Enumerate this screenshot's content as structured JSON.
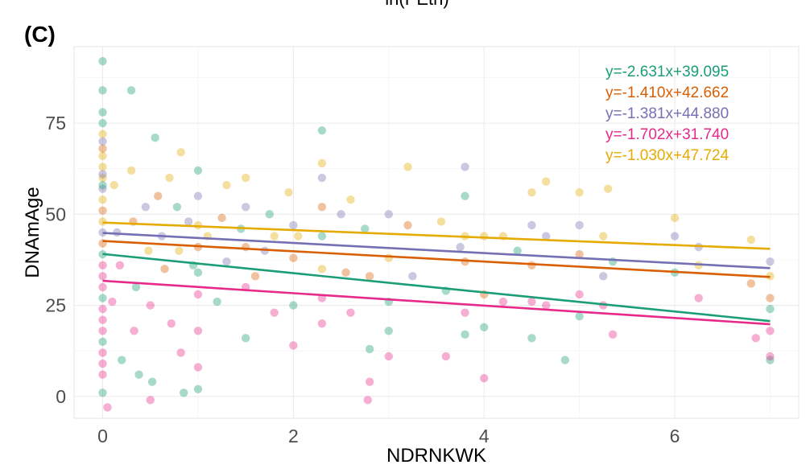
{
  "figure": {
    "cut_title": "ln(PEth)",
    "panel_tag": "(C)"
  },
  "chart_data": {
    "type": "scatter",
    "title": "",
    "xlabel": "NDRNKWK",
    "ylabel": "DNAmAge",
    "xlim": [
      -0.3,
      7.3
    ],
    "ylim": [
      -6,
      96
    ],
    "x_ticks": [
      0,
      2,
      4,
      6
    ],
    "y_ticks": [
      0,
      25,
      50,
      75
    ],
    "x_minor_ticks": [
      1,
      3,
      5,
      7
    ],
    "y_minor_ticks": [
      12.5,
      37.5,
      62.5,
      87.5
    ],
    "grid": true,
    "legend_position": "top-right",
    "series": [
      {
        "color": "#1b9e77",
        "intercept": 39.095,
        "slope": -2.631,
        "label": "y=-2.631x+39.095"
      },
      {
        "color": "#d95f02",
        "intercept": 42.662,
        "slope": -1.41,
        "label": "y=-1.410x+42.662"
      },
      {
        "color": "#7570b3",
        "intercept": 44.88,
        "slope": -1.381,
        "label": "y=-1.381x+44.880"
      },
      {
        "color": "#e7298a",
        "intercept": 31.74,
        "slope": -1.702,
        "label": "y=-1.702x+31.740"
      },
      {
        "color": "#e6ab02",
        "intercept": 47.724,
        "slope": -1.03,
        "label": "y=-1.030x+47.724"
      }
    ],
    "regression_x_range": [
      0,
      7
    ],
    "points": [
      {
        "x": 0.0,
        "y": 92.0,
        "s": 0
      },
      {
        "x": 0.0,
        "y": 84.0,
        "s": 0
      },
      {
        "x": 0.0,
        "y": 78.0,
        "s": 0
      },
      {
        "x": 0.0,
        "y": 70.0,
        "s": 2
      },
      {
        "x": 0.0,
        "y": 66.0,
        "s": 4
      },
      {
        "x": 0.0,
        "y": 63.0,
        "s": 4
      },
      {
        "x": 0.0,
        "y": 60.0,
        "s": 4
      },
      {
        "x": 0.0,
        "y": 57.0,
        "s": 2
      },
      {
        "x": 0.0,
        "y": 54.0,
        "s": 4
      },
      {
        "x": 0.0,
        "y": 51.0,
        "s": 1
      },
      {
        "x": 0.0,
        "y": 48.0,
        "s": 4
      },
      {
        "x": 0.0,
        "y": 45.0,
        "s": 2
      },
      {
        "x": 0.0,
        "y": 42.0,
        "s": 1
      },
      {
        "x": 0.0,
        "y": 39.0,
        "s": 0
      },
      {
        "x": 0.0,
        "y": 36.0,
        "s": 3
      },
      {
        "x": 0.0,
        "y": 33.0,
        "s": 3
      },
      {
        "x": 0.0,
        "y": 30.0,
        "s": 3
      },
      {
        "x": 0.0,
        "y": 27.0,
        "s": 0
      },
      {
        "x": 0.0,
        "y": 24.0,
        "s": 3
      },
      {
        "x": 0.0,
        "y": 21.0,
        "s": 3
      },
      {
        "x": 0.0,
        "y": 18.0,
        "s": 3
      },
      {
        "x": 0.0,
        "y": 15.0,
        "s": 0
      },
      {
        "x": 0.0,
        "y": 12.0,
        "s": 3
      },
      {
        "x": 0.0,
        "y": 9.0,
        "s": 3
      },
      {
        "x": 0.0,
        "y": 6.0,
        "s": 3
      },
      {
        "x": 0.0,
        "y": 1.0,
        "s": 0
      },
      {
        "x": 0.05,
        "y": -3.0,
        "s": 3
      },
      {
        "x": 0.0,
        "y": 72.0,
        "s": 4
      },
      {
        "x": 0.0,
        "y": 68.0,
        "s": 1
      },
      {
        "x": 0.0,
        "y": 75.0,
        "s": 0
      },
      {
        "x": 0.0,
        "y": 61.0,
        "s": 2
      },
      {
        "x": 0.0,
        "y": 58.0,
        "s": 0
      },
      {
        "x": 0.12,
        "y": 58.0,
        "s": 4
      },
      {
        "x": 0.15,
        "y": 45.0,
        "s": 2
      },
      {
        "x": 0.18,
        "y": 36.0,
        "s": 3
      },
      {
        "x": 0.1,
        "y": 26.0,
        "s": 3
      },
      {
        "x": 0.2,
        "y": 10.0,
        "s": 0
      },
      {
        "x": 0.3,
        "y": 84.0,
        "s": 0
      },
      {
        "x": 0.3,
        "y": 62.0,
        "s": 4
      },
      {
        "x": 0.32,
        "y": 48.0,
        "s": 1
      },
      {
        "x": 0.35,
        "y": 30.0,
        "s": 0
      },
      {
        "x": 0.33,
        "y": 18.0,
        "s": 3
      },
      {
        "x": 0.38,
        "y": 6.0,
        "s": 0
      },
      {
        "x": 0.45,
        "y": 52.0,
        "s": 2
      },
      {
        "x": 0.48,
        "y": 40.0,
        "s": 4
      },
      {
        "x": 0.5,
        "y": 25.0,
        "s": 3
      },
      {
        "x": 0.52,
        "y": 4.0,
        "s": 0
      },
      {
        "x": 0.5,
        "y": -1.0,
        "s": 3
      },
      {
        "x": 0.55,
        "y": 71.0,
        "s": 0
      },
      {
        "x": 0.58,
        "y": 55.0,
        "s": 1
      },
      {
        "x": 0.62,
        "y": 44.0,
        "s": 2
      },
      {
        "x": 0.65,
        "y": 35.0,
        "s": 1
      },
      {
        "x": 0.7,
        "y": 60.0,
        "s": 4
      },
      {
        "x": 0.72,
        "y": 20.0,
        "s": 3
      },
      {
        "x": 0.78,
        "y": 52.0,
        "s": 0
      },
      {
        "x": 0.8,
        "y": 40.0,
        "s": 4
      },
      {
        "x": 0.82,
        "y": 67.0,
        "s": 4
      },
      {
        "x": 0.82,
        "y": 12.0,
        "s": 3
      },
      {
        "x": 0.85,
        "y": 1.0,
        "s": 0
      },
      {
        "x": 0.9,
        "y": 48.0,
        "s": 2
      },
      {
        "x": 0.95,
        "y": 36.0,
        "s": 0
      },
      {
        "x": 1.0,
        "y": 62.0,
        "s": 0
      },
      {
        "x": 1.0,
        "y": 55.0,
        "s": 2
      },
      {
        "x": 1.0,
        "y": 47.0,
        "s": 4
      },
      {
        "x": 1.0,
        "y": 41.0,
        "s": 1
      },
      {
        "x": 1.0,
        "y": 34.0,
        "s": 0
      },
      {
        "x": 1.0,
        "y": 28.0,
        "s": 3
      },
      {
        "x": 1.0,
        "y": 18.0,
        "s": 3
      },
      {
        "x": 1.0,
        "y": 8.0,
        "s": 3
      },
      {
        "x": 1.0,
        "y": 2.0,
        "s": 0
      },
      {
        "x": 1.1,
        "y": 44.0,
        "s": 4
      },
      {
        "x": 1.2,
        "y": 26.0,
        "s": 0
      },
      {
        "x": 1.25,
        "y": 49.0,
        "s": 1
      },
      {
        "x": 1.3,
        "y": 58.0,
        "s": 4
      },
      {
        "x": 1.3,
        "y": 37.0,
        "s": 2
      },
      {
        "x": 1.45,
        "y": 46.0,
        "s": 0
      },
      {
        "x": 1.5,
        "y": 60.0,
        "s": 4
      },
      {
        "x": 1.5,
        "y": 52.0,
        "s": 2
      },
      {
        "x": 1.5,
        "y": 41.0,
        "s": 1
      },
      {
        "x": 1.5,
        "y": 30.0,
        "s": 3
      },
      {
        "x": 1.5,
        "y": 16.0,
        "s": 0
      },
      {
        "x": 1.6,
        "y": 33.0,
        "s": 1
      },
      {
        "x": 1.7,
        "y": 40.0,
        "s": 2
      },
      {
        "x": 1.75,
        "y": 50.0,
        "s": 0
      },
      {
        "x": 1.8,
        "y": 23.0,
        "s": 3
      },
      {
        "x": 1.8,
        "y": 44.0,
        "s": 4
      },
      {
        "x": 1.95,
        "y": 56.0,
        "s": 4
      },
      {
        "x": 2.0,
        "y": 47.0,
        "s": 2
      },
      {
        "x": 2.0,
        "y": 38.0,
        "s": 1
      },
      {
        "x": 2.0,
        "y": 25.0,
        "s": 0
      },
      {
        "x": 2.0,
        "y": 14.0,
        "s": 3
      },
      {
        "x": 2.05,
        "y": 44.0,
        "s": 4
      },
      {
        "x": 2.3,
        "y": 73.0,
        "s": 0
      },
      {
        "x": 2.3,
        "y": 64.0,
        "s": 4
      },
      {
        "x": 2.3,
        "y": 60.0,
        "s": 2
      },
      {
        "x": 2.3,
        "y": 52.0,
        "s": 1
      },
      {
        "x": 2.3,
        "y": 44.0,
        "s": 0
      },
      {
        "x": 2.3,
        "y": 35.0,
        "s": 4
      },
      {
        "x": 2.3,
        "y": 27.0,
        "s": 3
      },
      {
        "x": 2.3,
        "y": 20.0,
        "s": 3
      },
      {
        "x": 2.5,
        "y": 50.0,
        "s": 2
      },
      {
        "x": 2.55,
        "y": 34.0,
        "s": 1
      },
      {
        "x": 2.6,
        "y": 54.0,
        "s": 4
      },
      {
        "x": 2.6,
        "y": 23.0,
        "s": 3
      },
      {
        "x": 2.75,
        "y": 46.0,
        "s": 0
      },
      {
        "x": 2.8,
        "y": 33.0,
        "s": 1
      },
      {
        "x": 2.8,
        "y": 13.0,
        "s": 0
      },
      {
        "x": 2.8,
        "y": 4.0,
        "s": 3
      },
      {
        "x": 2.78,
        "y": -1.0,
        "s": 3
      },
      {
        "x": 3.0,
        "y": 50.0,
        "s": 2
      },
      {
        "x": 3.0,
        "y": 38.0,
        "s": 4
      },
      {
        "x": 3.0,
        "y": 26.0,
        "s": 0
      },
      {
        "x": 3.0,
        "y": 18.0,
        "s": 0
      },
      {
        "x": 3.0,
        "y": 11.0,
        "s": 3
      },
      {
        "x": 3.2,
        "y": 63.0,
        "s": 4
      },
      {
        "x": 3.2,
        "y": 47.0,
        "s": 1
      },
      {
        "x": 3.25,
        "y": 33.0,
        "s": 2
      },
      {
        "x": 3.55,
        "y": 48.0,
        "s": 4
      },
      {
        "x": 3.6,
        "y": 29.0,
        "s": 0
      },
      {
        "x": 3.6,
        "y": 11.0,
        "s": 3
      },
      {
        "x": 3.75,
        "y": 41.0,
        "s": 2
      },
      {
        "x": 3.8,
        "y": 63.0,
        "s": 2
      },
      {
        "x": 3.8,
        "y": 55.0,
        "s": 0
      },
      {
        "x": 3.8,
        "y": 44.0,
        "s": 4
      },
      {
        "x": 3.8,
        "y": 37.0,
        "s": 1
      },
      {
        "x": 3.8,
        "y": 23.0,
        "s": 3
      },
      {
        "x": 3.8,
        "y": 17.0,
        "s": 0
      },
      {
        "x": 4.0,
        "y": 44.0,
        "s": 4
      },
      {
        "x": 4.0,
        "y": 28.0,
        "s": 1
      },
      {
        "x": 4.0,
        "y": 19.0,
        "s": 0
      },
      {
        "x": 4.0,
        "y": 5.0,
        "s": 3
      },
      {
        "x": 4.2,
        "y": 44.0,
        "s": 4
      },
      {
        "x": 4.2,
        "y": 26.0,
        "s": 3
      },
      {
        "x": 4.35,
        "y": 40.0,
        "s": 0
      },
      {
        "x": 4.5,
        "y": 56.0,
        "s": 4
      },
      {
        "x": 4.5,
        "y": 47.0,
        "s": 2
      },
      {
        "x": 4.5,
        "y": 36.0,
        "s": 1
      },
      {
        "x": 4.5,
        "y": 26.0,
        "s": 3
      },
      {
        "x": 4.5,
        "y": 16.0,
        "s": 0
      },
      {
        "x": 4.65,
        "y": 59.0,
        "s": 4
      },
      {
        "x": 4.65,
        "y": 44.0,
        "s": 2
      },
      {
        "x": 4.65,
        "y": 25.0,
        "s": 3
      },
      {
        "x": 4.85,
        "y": 10.0,
        "s": 0
      },
      {
        "x": 5.0,
        "y": 56.0,
        "s": 4
      },
      {
        "x": 5.0,
        "y": 47.0,
        "s": 2
      },
      {
        "x": 5.0,
        "y": 39.0,
        "s": 1
      },
      {
        "x": 5.0,
        "y": 28.0,
        "s": 3
      },
      {
        "x": 5.0,
        "y": 22.0,
        "s": 0
      },
      {
        "x": 5.25,
        "y": 44.0,
        "s": 4
      },
      {
        "x": 5.25,
        "y": 33.0,
        "s": 2
      },
      {
        "x": 5.25,
        "y": 25.0,
        "s": 3
      },
      {
        "x": 5.3,
        "y": 57.0,
        "s": 4
      },
      {
        "x": 5.35,
        "y": 17.0,
        "s": 3
      },
      {
        "x": 5.35,
        "y": 37.0,
        "s": 0
      },
      {
        "x": 6.0,
        "y": 49.0,
        "s": 4
      },
      {
        "x": 6.0,
        "y": 44.0,
        "s": 2
      },
      {
        "x": 6.0,
        "y": 34.0,
        "s": 0
      },
      {
        "x": 6.25,
        "y": 41.0,
        "s": 2
      },
      {
        "x": 6.25,
        "y": 36.0,
        "s": 4
      },
      {
        "x": 6.25,
        "y": 27.0,
        "s": 3
      },
      {
        "x": 6.8,
        "y": 43.0,
        "s": 4
      },
      {
        "x": 6.8,
        "y": 31.0,
        "s": 1
      },
      {
        "x": 6.85,
        "y": 16.0,
        "s": 3
      },
      {
        "x": 7.0,
        "y": 37.0,
        "s": 2
      },
      {
        "x": 7.0,
        "y": 33.0,
        "s": 4
      },
      {
        "x": 7.0,
        "y": 27.0,
        "s": 1
      },
      {
        "x": 7.0,
        "y": 24.0,
        "s": 0
      },
      {
        "x": 7.0,
        "y": 18.0,
        "s": 3
      },
      {
        "x": 7.0,
        "y": 10.0,
        "s": 0
      },
      {
        "x": 7.0,
        "y": 11.0,
        "s": 3
      }
    ]
  }
}
